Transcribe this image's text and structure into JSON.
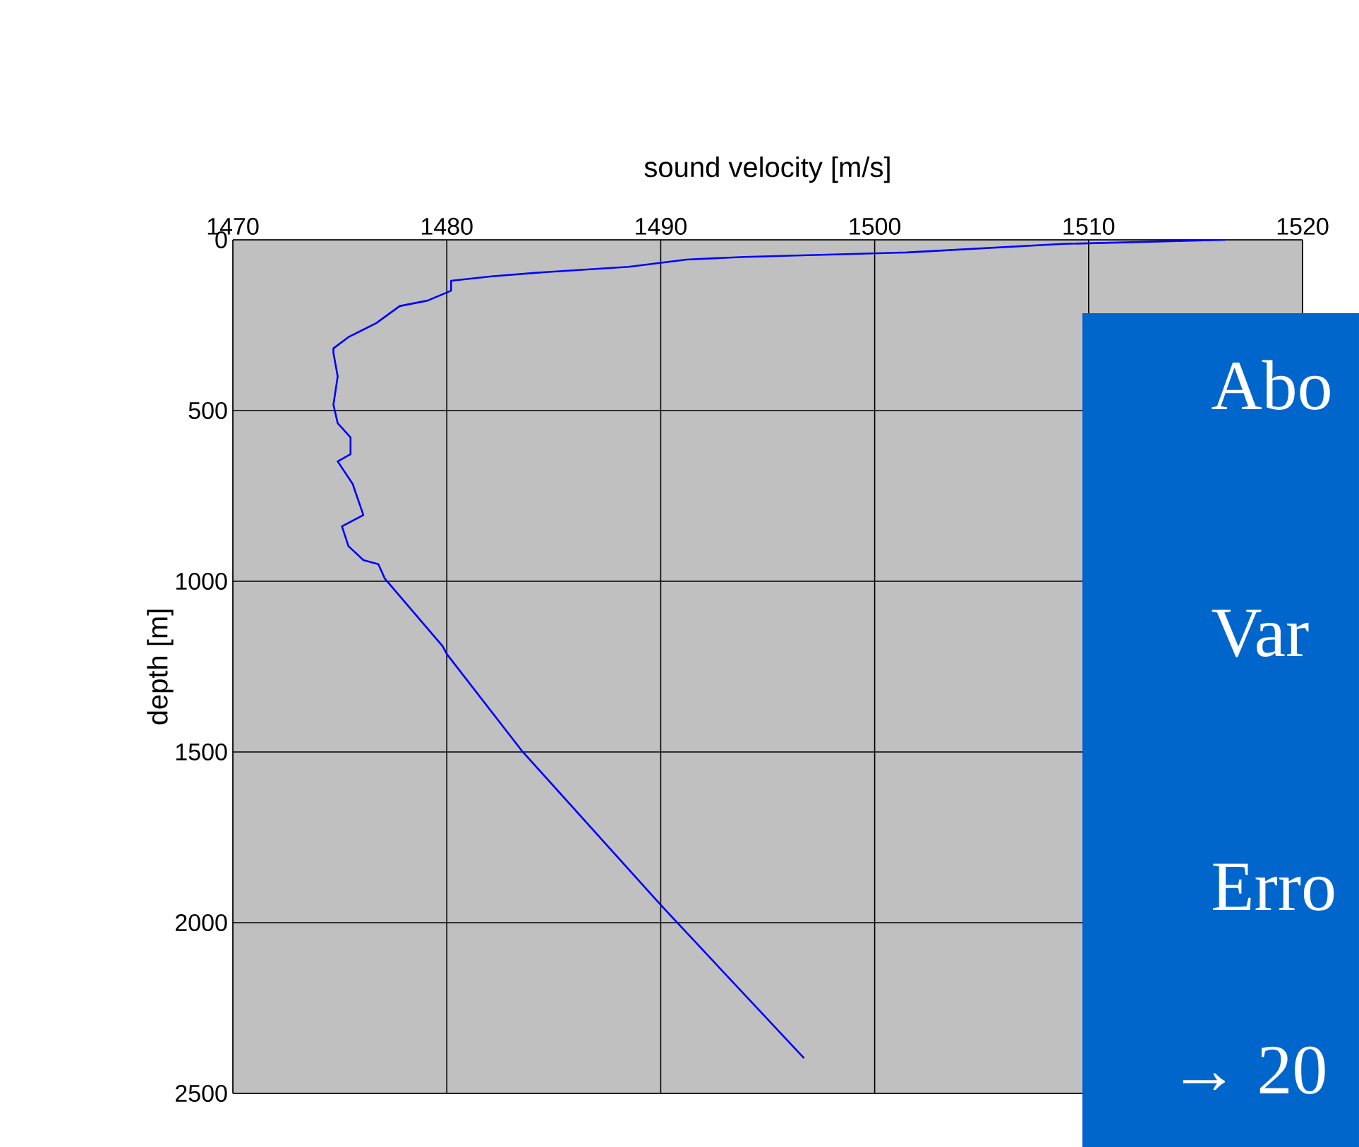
{
  "chart_data": {
    "type": "line",
    "xlabel": "sound velocity [m/s]",
    "ylabel": "depth [m]",
    "xlim": [
      1470,
      1520
    ],
    "xticks": [
      1470,
      1480,
      1490,
      1500,
      1510,
      1520
    ],
    "ylim": [
      2500,
      0
    ],
    "yticks": [
      0,
      500,
      1000,
      1500,
      2000,
      2500
    ],
    "grid": true,
    "marker": "none",
    "line_style": "solid",
    "series": [
      {
        "color": "#0000ff",
        "x": [
          1516.4,
          1508.8,
          1501.5,
          1493.9,
          1491.2,
          1488.5,
          1484.5,
          1482.1,
          1480.2,
          1480.2,
          1479.1,
          1477.8,
          1476.7,
          1475.4,
          1474.7,
          1474.7,
          1474.9,
          1474.7,
          1474.9,
          1475.5,
          1475.5,
          1474.9,
          1475.6,
          1476.1,
          1475.1,
          1475.4,
          1476.1,
          1476.8,
          1477.1,
          1479.8,
          1480.0,
          1483.5,
          1490.1,
          1496.7
        ],
        "values": [
          0,
          12,
          37,
          50,
          58,
          79,
          95,
          107,
          120,
          149,
          178,
          194,
          244,
          285,
          318,
          331,
          400,
          483,
          537,
          579,
          628,
          649,
          715,
          806,
          839,
          897,
          938,
          950,
          992,
          1190,
          1213,
          1496,
          1955,
          2397
        ]
      }
    ],
    "annotations": [
      "Abo",
      "Var",
      "Erro",
      "→ 20"
    ]
  }
}
